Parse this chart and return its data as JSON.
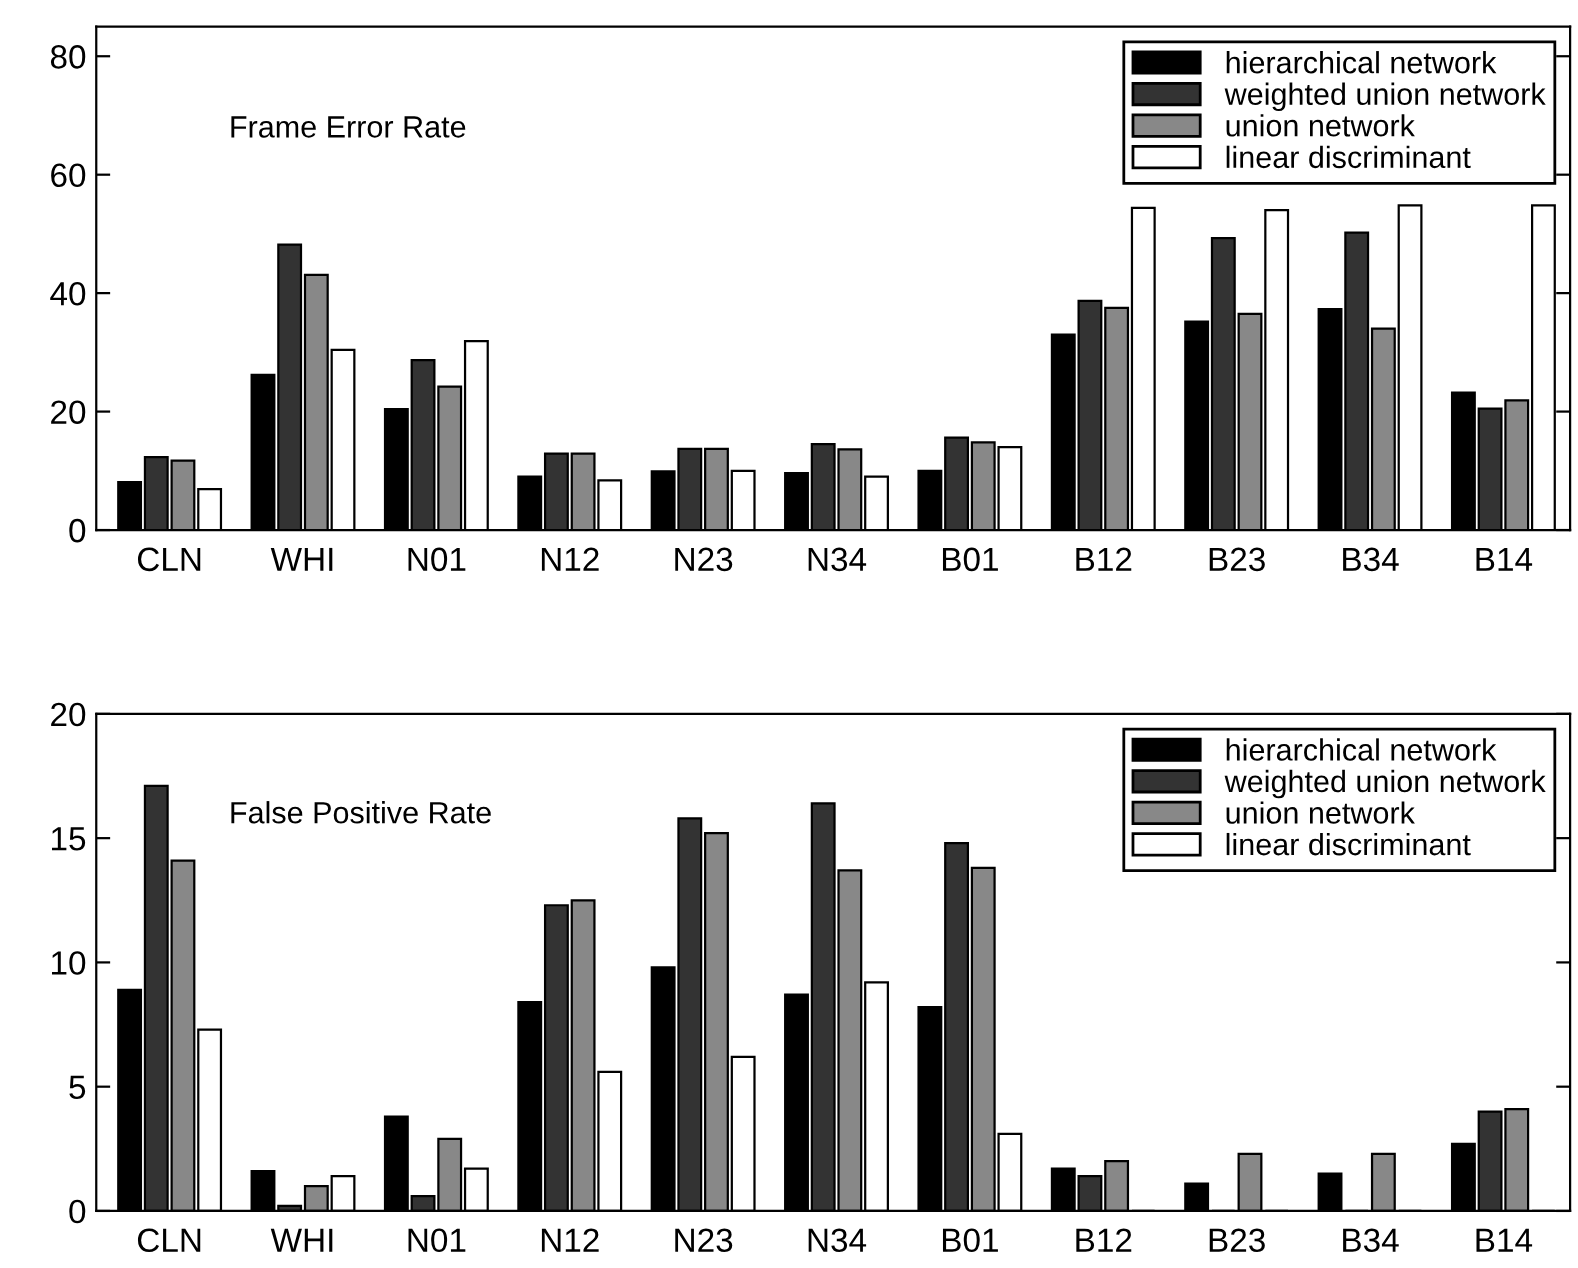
{
  "chart_data": [
    {
      "type": "bar",
      "title": "Frame Error Rate",
      "categories": [
        "CLN",
        "WHI",
        "N01",
        "N12",
        "N23",
        "N34",
        "B01",
        "B12",
        "B23",
        "B34",
        "B14"
      ],
      "series": [
        {
          "name": "hierarchical network",
          "color": "#000000",
          "values": [
            8.1,
            26.2,
            20.4,
            9.0,
            9.9,
            9.6,
            10.0,
            33.0,
            35.2,
            37.3,
            23.2
          ]
        },
        {
          "name": "weighted union network",
          "color": "#333333",
          "values": [
            12.3,
            48.2,
            28.7,
            12.9,
            13.7,
            14.5,
            15.6,
            38.7,
            49.3,
            50.2,
            20.5
          ]
        },
        {
          "name": "union network",
          "color": "#888888",
          "values": [
            11.7,
            43.1,
            24.2,
            12.9,
            13.7,
            13.6,
            14.8,
            37.5,
            36.5,
            34.0,
            21.9
          ]
        },
        {
          "name": "linear discriminant",
          "color": "#ffffff",
          "values": [
            6.9,
            30.4,
            31.9,
            8.4,
            10.0,
            9.0,
            14.0,
            54.4,
            54.0,
            54.8,
            54.8
          ]
        }
      ],
      "ylim": [
        0,
        85
      ],
      "yticks": [
        0,
        20,
        40,
        60,
        80
      ],
      "legend": "top right",
      "grid": false
    },
    {
      "type": "bar",
      "title": "False Positive Rate",
      "categories": [
        "CLN",
        "WHI",
        "N01",
        "N12",
        "N23",
        "N34",
        "B01",
        "B12",
        "B23",
        "B34",
        "B14"
      ],
      "series": [
        {
          "name": "hierarchical network",
          "color": "#000000",
          "values": [
            8.9,
            1.6,
            3.8,
            8.4,
            9.8,
            8.7,
            8.2,
            1.7,
            1.1,
            1.5,
            2.7
          ]
        },
        {
          "name": "weighted union network",
          "color": "#333333",
          "values": [
            17.1,
            0.2,
            0.6,
            12.3,
            15.8,
            16.4,
            14.8,
            1.4,
            0,
            0,
            4.0
          ]
        },
        {
          "name": "union network",
          "color": "#888888",
          "values": [
            14.1,
            1.0,
            2.9,
            12.5,
            15.2,
            13.7,
            13.8,
            2.0,
            2.3,
            2.3,
            4.1
          ]
        },
        {
          "name": "linear discriminant",
          "color": "#ffffff",
          "values": [
            7.3,
            1.4,
            1.7,
            5.6,
            6.2,
            9.2,
            3.1,
            0,
            0,
            0,
            null
          ]
        }
      ],
      "ylim": [
        0,
        20
      ],
      "yticks": [
        0,
        5,
        10,
        15,
        20
      ],
      "legend": "top right",
      "grid": false
    }
  ]
}
